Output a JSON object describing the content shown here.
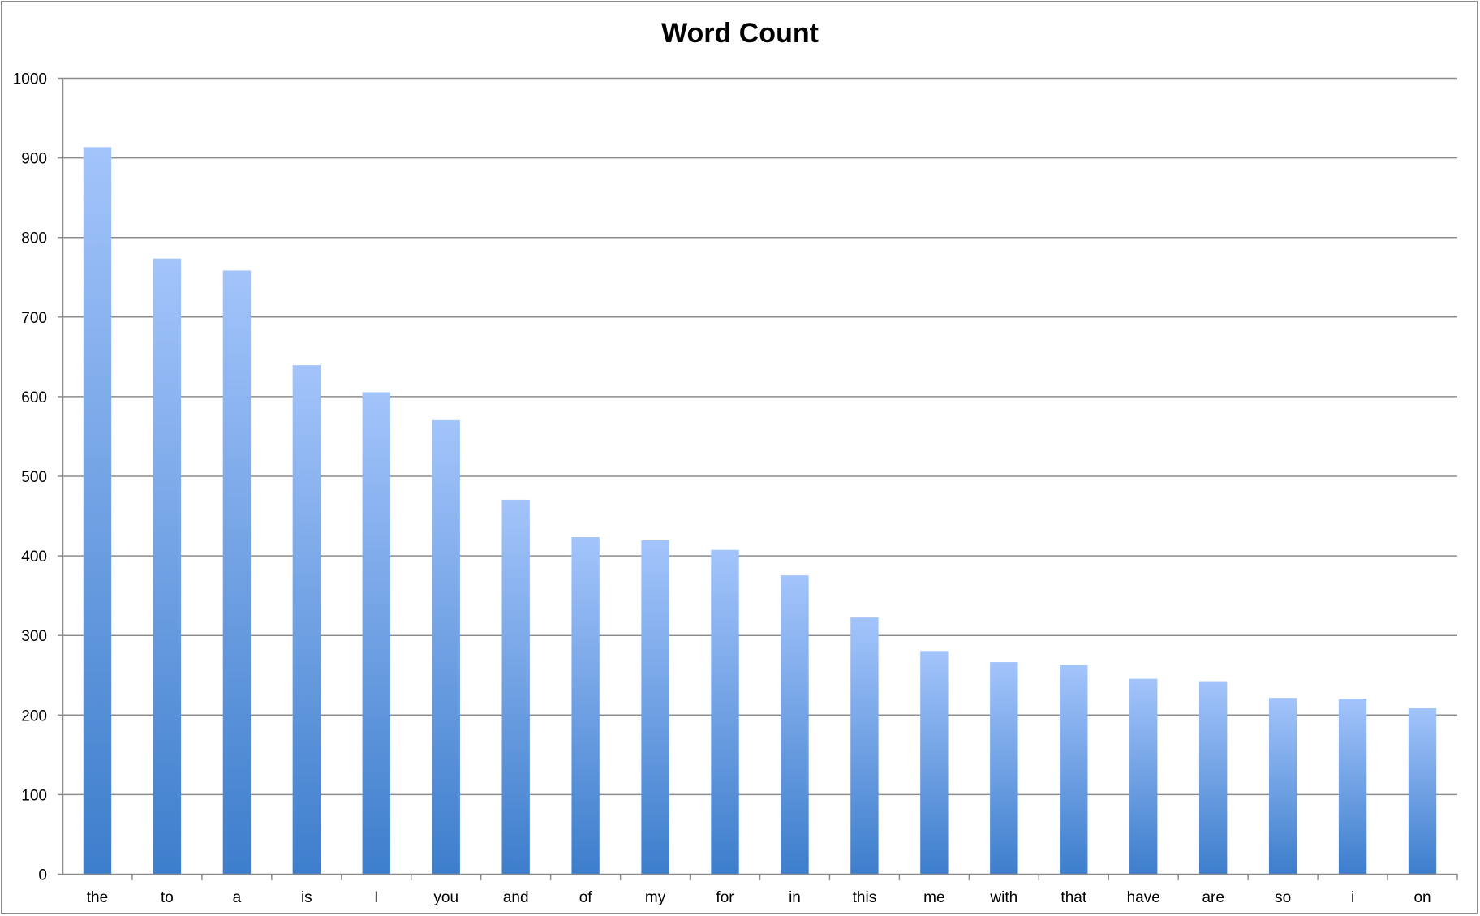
{
  "chart_data": {
    "type": "bar",
    "title": "Word Count",
    "xlabel": "",
    "ylabel": "",
    "categories": [
      "the",
      "to",
      "a",
      "is",
      "I",
      "you",
      "and",
      "of",
      "my",
      "for",
      "in",
      "this",
      "me",
      "with",
      "that",
      "have",
      "are",
      "so",
      "i",
      "on"
    ],
    "values": [
      913,
      773,
      758,
      639,
      605,
      570,
      470,
      423,
      419,
      407,
      375,
      322,
      280,
      266,
      262,
      245,
      242,
      221,
      220,
      208
    ],
    "ylim": [
      0,
      1000
    ],
    "yticks": [
      0,
      100,
      200,
      300,
      400,
      500,
      600,
      700,
      800,
      900,
      1000
    ],
    "grid": true,
    "legend": "none",
    "colors": {
      "bar_top": "#a3c4fb",
      "bar_bottom": "#3d7ecc",
      "grid": "#8c8c8c",
      "axis": "#8c8c8c"
    }
  }
}
